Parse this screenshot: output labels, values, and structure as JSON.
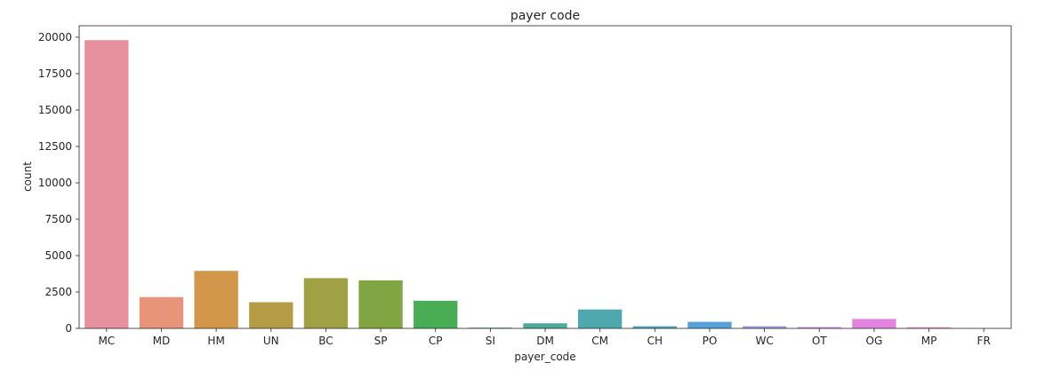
{
  "chart_data": {
    "type": "bar",
    "title": "payer code",
    "xlabel": "payer_code",
    "ylabel": "count",
    "categories": [
      "MC",
      "MD",
      "HM",
      "UN",
      "BC",
      "SP",
      "CP",
      "SI",
      "DM",
      "CM",
      "CH",
      "PO",
      "WC",
      "OT",
      "OG",
      "MP",
      "FR"
    ],
    "values": [
      19800,
      2150,
      3950,
      1800,
      3450,
      3300,
      1900,
      50,
      350,
      1300,
      150,
      450,
      150,
      90,
      650,
      80,
      5
    ],
    "colors": [
      "#e8919e",
      "#e8947a",
      "#d3974b",
      "#b59b46",
      "#a0a045",
      "#82a543",
      "#48ad55",
      "#4bab87",
      "#4daa9c",
      "#4fa8ad",
      "#53a6c1",
      "#57a1d9",
      "#9b9be4",
      "#c591e4",
      "#e184e0",
      "#e88dc4",
      "#e890b2"
    ],
    "yticks": [
      0,
      2500,
      5000,
      7500,
      10000,
      12500,
      15000,
      17500,
      20000
    ],
    "ylim": [
      0,
      20790
    ],
    "grid": false,
    "legend": "none"
  }
}
